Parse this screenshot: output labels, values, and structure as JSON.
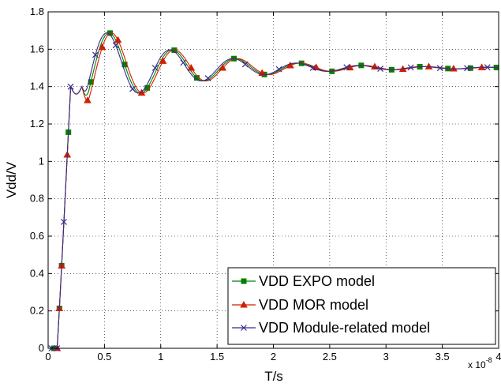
{
  "chart_data": {
    "type": "line",
    "xlabel": "T/s",
    "ylabel": "Vdd/V",
    "x_multiplier_label": "x 10",
    "x_multiplier_exp": "-8",
    "xlim": [
      0,
      4
    ],
    "ylim": [
      0,
      1.8
    ],
    "xticks": [
      "0",
      "0.5",
      "1",
      "1.5",
      "2",
      "2.5",
      "3",
      "3.5",
      "4"
    ],
    "yticks": [
      "0",
      "0.2",
      "0.4",
      "0.6",
      "0.8",
      "1",
      "1.2",
      "1.4",
      "1.6",
      "1.8"
    ],
    "grid": true,
    "legend_position": "bottom-right",
    "series": [
      {
        "name": "VDD EXPO model",
        "color": "#008000",
        "marker": "square",
        "shift": 0.0,
        "markers_x": [
          0.05,
          0.1,
          0.12,
          0.18,
          0.38,
          0.55,
          0.68,
          0.88,
          1.12,
          1.32,
          1.65,
          1.92,
          2.25,
          2.52,
          2.78,
          3.05,
          3.3,
          3.55,
          3.75,
          3.98
        ]
      },
      {
        "name": "VDD MOR model",
        "color": "#d02000",
        "marker": "triangle",
        "shift": 0.02,
        "markers_x": [
          0.08,
          0.1,
          0.12,
          0.17,
          0.35,
          0.48,
          0.62,
          0.83,
          1.02,
          1.27,
          1.55,
          1.9,
          2.15,
          2.38,
          2.68,
          2.9,
          3.15,
          3.38,
          3.6,
          3.85
        ]
      },
      {
        "name": "VDD Module-related model",
        "color": "#3a2a8a",
        "marker": "x",
        "shift": -0.02,
        "markers_x": [
          0.03,
          0.08,
          0.14,
          0.2,
          0.42,
          0.6,
          0.75,
          0.95,
          1.2,
          1.42,
          1.75,
          2.05,
          2.35,
          2.65,
          2.95,
          3.22,
          3.48,
          3.72,
          3.9
        ]
      }
    ]
  }
}
